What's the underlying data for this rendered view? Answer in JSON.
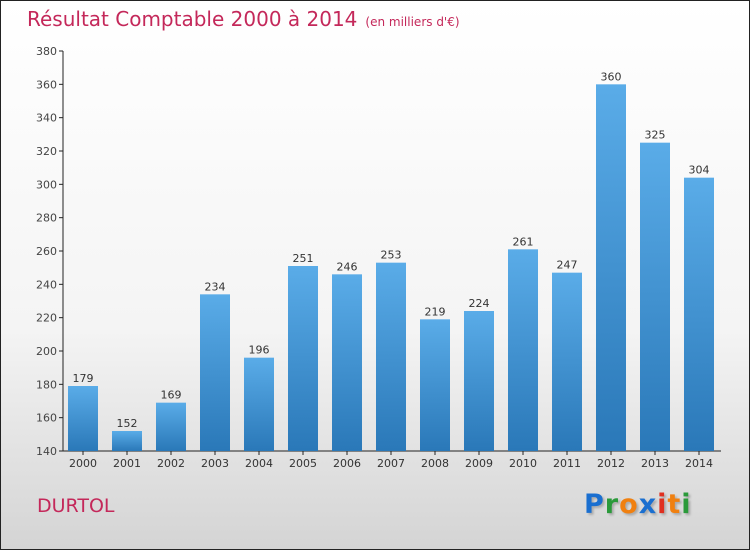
{
  "title": "Résultat Comptable 2000 à 2014",
  "subtitle": "(en milliers d'€)",
  "town": "DURTOL",
  "logo": "Proxiti",
  "colors": {
    "bar": "#3a8fd6",
    "title": "#c4285a"
  },
  "chart_data": {
    "type": "bar",
    "title": "Résultat Comptable 2000 à 2014",
    "categories": [
      "2000",
      "2001",
      "2002",
      "2003",
      "2004",
      "2005",
      "2006",
      "2007",
      "2008",
      "2009",
      "2010",
      "2011",
      "2012",
      "2013",
      "2014"
    ],
    "values": [
      179,
      152,
      169,
      234,
      196,
      251,
      246,
      253,
      219,
      224,
      261,
      247,
      360,
      325,
      304
    ],
    "ylim": [
      140,
      380
    ],
    "yticks": [
      140,
      160,
      180,
      200,
      220,
      240,
      260,
      280,
      300,
      320,
      340,
      360,
      380
    ],
    "xlabel": "",
    "ylabel": ""
  }
}
